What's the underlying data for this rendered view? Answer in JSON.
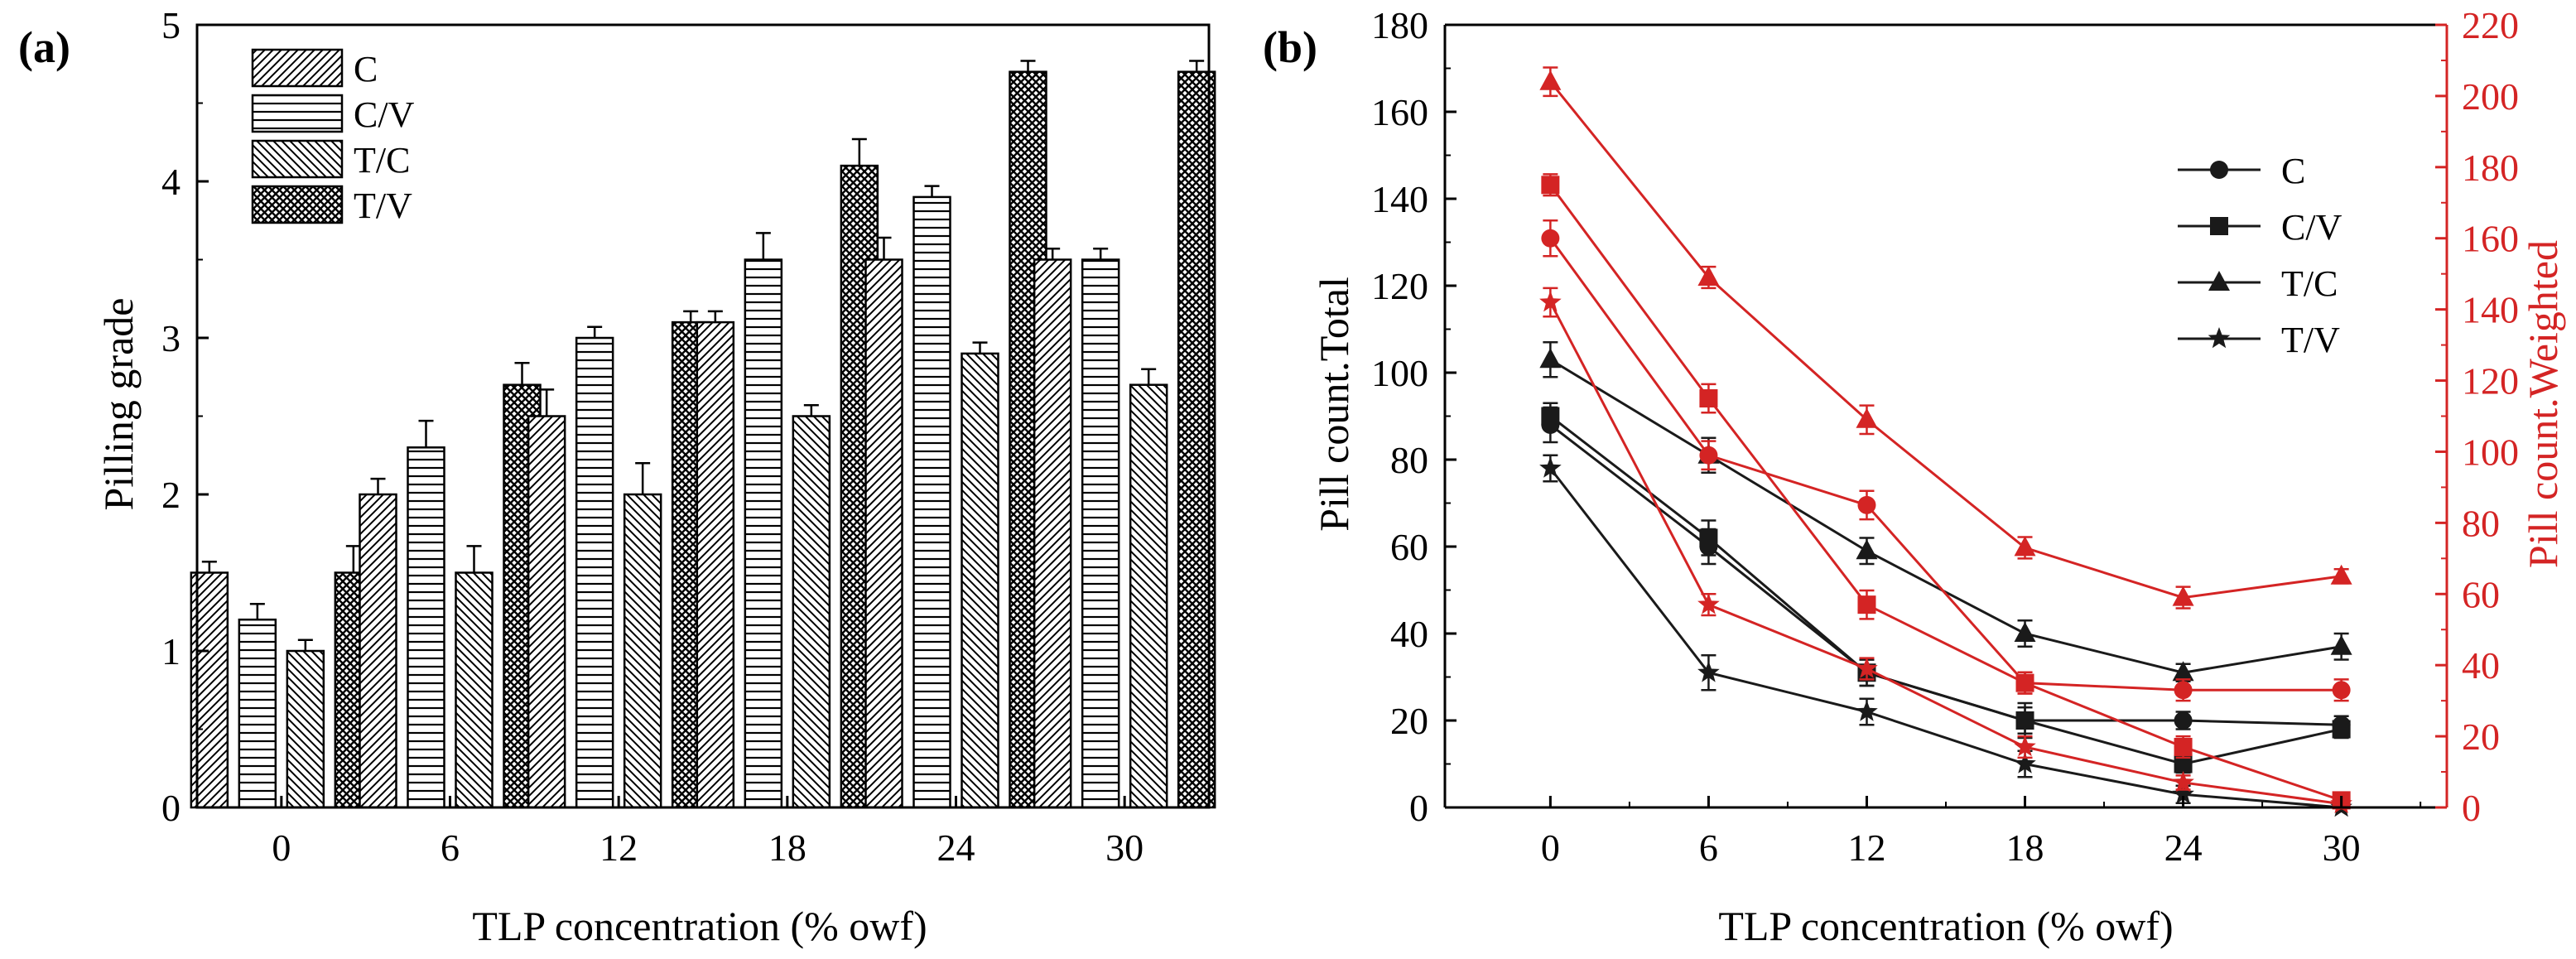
{
  "colors": {
    "black": "#1a1a1a",
    "red": "#d42424",
    "grid": "#000000"
  },
  "chart_data": [
    {
      "panel_label": "(a)",
      "type": "bar",
      "xlabel": "TLP concentration (% owf)",
      "ylabel": "Pilling grade",
      "ylim": [
        0,
        5
      ],
      "yticks": [
        "0",
        "1",
        "2",
        "3",
        "4",
        "5"
      ],
      "categories": [
        "0",
        "6",
        "12",
        "18",
        "24",
        "30"
      ],
      "legend_position": "top-left",
      "series": [
        {
          "name": "C",
          "pattern": "diag-right",
          "values": [
            1.5,
            2.0,
            2.5,
            3.1,
            3.5,
            3.5
          ],
          "errors": [
            0.07,
            0.1,
            0.17,
            0.07,
            0.14,
            0.07
          ]
        },
        {
          "name": "C/V",
          "pattern": "horizontal",
          "values": [
            1.2,
            2.3,
            3.0,
            3.5,
            3.9,
            3.5
          ],
          "errors": [
            0.1,
            0.17,
            0.07,
            0.17,
            0.07,
            0.07
          ]
        },
        {
          "name": "T/C",
          "pattern": "diag-left",
          "values": [
            1.0,
            1.5,
            2.0,
            2.5,
            2.9,
            2.7
          ],
          "errors": [
            0.07,
            0.17,
            0.2,
            0.07,
            0.07,
            0.1
          ]
        },
        {
          "name": "T/V",
          "pattern": "cross",
          "values": [
            1.5,
            2.7,
            3.1,
            4.1,
            4.7,
            4.7
          ],
          "errors": [
            0.17,
            0.14,
            0.07,
            0.17,
            0.07,
            0.07
          ]
        }
      ]
    },
    {
      "panel_label": "(b)",
      "type": "line",
      "xlabel": "TLP concentration (% owf)",
      "ylabel": "Pill count.Total",
      "y2label": "Pill count.Weighted",
      "x": [
        0,
        6,
        12,
        18,
        24,
        30
      ],
      "xticks": [
        "0",
        "6",
        "12",
        "18",
        "24",
        "30"
      ],
      "ylim": [
        0,
        180
      ],
      "yticks": [
        "0",
        "20",
        "40",
        "60",
        "80",
        "100",
        "120",
        "140",
        "160",
        "180"
      ],
      "y2lim": [
        0,
        220
      ],
      "y2ticks": [
        "0",
        "20",
        "40",
        "60",
        "80",
        "100",
        "120",
        "140",
        "160",
        "180",
        "200",
        "220"
      ],
      "legend_position": "top-right",
      "series": [
        {
          "name": "C",
          "marker": "circle",
          "axis": "left",
          "values": [
            88,
            60,
            31,
            20,
            20,
            19
          ],
          "errors": [
            4,
            4,
            3,
            4,
            2,
            2
          ]
        },
        {
          "name": "C/V",
          "marker": "square",
          "axis": "left",
          "values": [
            90,
            62,
            31,
            20,
            10,
            18
          ],
          "errors": [
            3,
            4,
            3,
            3,
            2,
            2
          ]
        },
        {
          "name": "T/C",
          "marker": "triangle",
          "axis": "left",
          "values": [
            103,
            81,
            59,
            40,
            31,
            37
          ],
          "errors": [
            4,
            4,
            3,
            3,
            2,
            3
          ]
        },
        {
          "name": "T/V",
          "marker": "star",
          "axis": "left",
          "values": [
            78,
            31,
            22,
            10,
            3,
            0
          ],
          "errors": [
            3,
            4,
            3,
            3,
            2,
            1
          ]
        },
        {
          "name": "C (weighted)",
          "marker": "circle",
          "axis": "right",
          "values": [
            160,
            99,
            85,
            35,
            33,
            33
          ],
          "errors": [
            5,
            4,
            4,
            3,
            3,
            3
          ]
        },
        {
          "name": "C/V (weighted)",
          "marker": "square",
          "axis": "right",
          "values": [
            175,
            115,
            57,
            35,
            17,
            2
          ],
          "errors": [
            3,
            4,
            4,
            3,
            3,
            1
          ]
        },
        {
          "name": "T/C (weighted)",
          "marker": "triangle",
          "axis": "right",
          "values": [
            204,
            149,
            109,
            73,
            59,
            65
          ],
          "errors": [
            4,
            3,
            4,
            3,
            3,
            2
          ]
        },
        {
          "name": "T/V (weighted)",
          "marker": "star",
          "axis": "right",
          "values": [
            142,
            57,
            39,
            17,
            7,
            1
          ],
          "errors": [
            4,
            3,
            3,
            3,
            2,
            1
          ]
        }
      ]
    }
  ]
}
